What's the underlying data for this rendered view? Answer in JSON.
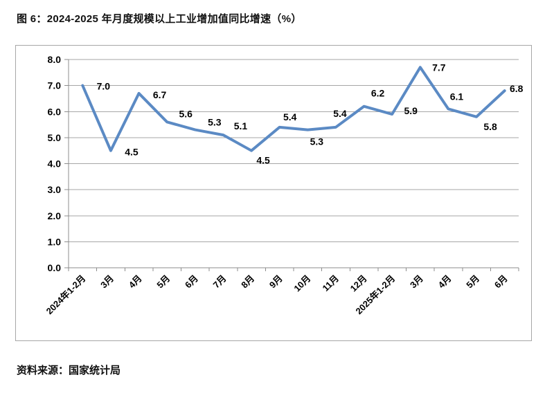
{
  "page": {
    "title": "图 6：2024-2025 年月度规模以上工业增加值同比增速（%）",
    "source": "资料来源：国家统计局"
  },
  "chart_data": {
    "type": "line",
    "title": "图 6：2024-2025 年月度规模以上工业增加值同比增速（%）",
    "categories": [
      "2024年1-2月",
      "3月",
      "4月",
      "5月",
      "6月",
      "7月",
      "8月",
      "9月",
      "10月",
      "11月",
      "12月",
      "2025年1-2月",
      "3月",
      "4月",
      "5月",
      "6月"
    ],
    "values": [
      7.0,
      4.5,
      6.7,
      5.6,
      5.3,
      5.1,
      4.5,
      5.4,
      5.3,
      5.4,
      6.2,
      5.9,
      7.7,
      6.1,
      5.8,
      6.8
    ],
    "data_labels": [
      "7.0",
      "4.5",
      "6.7",
      "5.6",
      "5.3",
      "5.1",
      "4.5",
      "5.4",
      "5.3",
      "5.4",
      "6.2",
      "5.9",
      "7.7",
      "6.1",
      "5.8",
      "6.8"
    ],
    "ylim": [
      0,
      8
    ],
    "ytick_step": 1.0,
    "ytick_labels": [
      "0.0",
      "1.0",
      "2.0",
      "3.0",
      "4.0",
      "5.0",
      "6.0",
      "7.0",
      "8.0"
    ],
    "xlabel": "",
    "ylabel": "",
    "grid": "horizontal",
    "legend": "none",
    "colors": {
      "line": "#5b8ac4",
      "grid": "#a6a6a6",
      "axis": "#8c8c8c",
      "text": "#000000",
      "frame_border": "#a6a6a6",
      "background": "#ffffff"
    }
  }
}
